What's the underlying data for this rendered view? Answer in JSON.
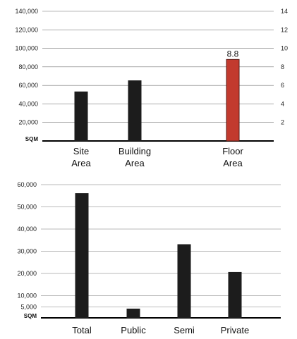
{
  "chart_data": [
    {
      "type": "bar",
      "unit_label": "SQM",
      "categories": [
        "Site Area",
        "Building Area",
        "Floor Area"
      ],
      "category_lines": [
        [
          "Site",
          "Area"
        ],
        [
          "Building",
          "Area"
        ],
        [
          "Floor",
          "Area"
        ]
      ],
      "values": [
        53000,
        65000,
        8.8
      ],
      "axes": [
        "left",
        "left",
        "right"
      ],
      "colors": [
        "#1c1c1c",
        "#1c1c1c",
        "#c23a2e"
      ],
      "data_labels": [
        null,
        null,
        "8.8"
      ],
      "y_ticks": [
        "140,000",
        "120,000",
        "100,000",
        "80,000",
        "60,000",
        "40,000",
        "20,000"
      ],
      "y_right_ticks": [
        "14",
        "12",
        "10",
        "8",
        "6",
        "4",
        "2"
      ],
      "ylim": [
        0,
        140000
      ],
      "y2lim": [
        0,
        14
      ],
      "grid": true
    },
    {
      "type": "bar",
      "unit_label": "SQM",
      "categories": [
        "Total",
        "Public",
        "Semi",
        "Private"
      ],
      "values": [
        56000,
        4000,
        33000,
        20500
      ],
      "colors": [
        "#1c1c1c",
        "#1c1c1c",
        "#1c1c1c",
        "#1c1c1c"
      ],
      "y_ticks": [
        "60,000",
        "50,000",
        "40,000",
        "30,000",
        "20,000",
        "10,000",
        "5,000"
      ],
      "ylim": [
        0,
        60000
      ],
      "grid": true
    }
  ]
}
